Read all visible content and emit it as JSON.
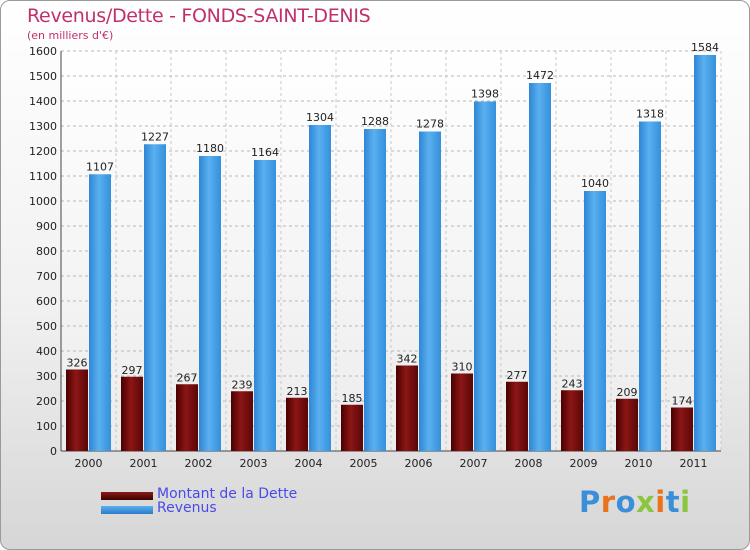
{
  "chart_data": {
    "type": "bar",
    "title": "Revenus/Dette - FONDS-SAINT-DENIS",
    "subtitle": "(en milliers d'€)",
    "categories": [
      "2000",
      "2001",
      "2002",
      "2003",
      "2004",
      "2005",
      "2006",
      "2007",
      "2008",
      "2009",
      "2010",
      "2011"
    ],
    "series": [
      {
        "name": "Montant de la Dette",
        "color": "#6b0a0a",
        "values": [
          326,
          297,
          267,
          239,
          213,
          185,
          342,
          310,
          277,
          243,
          209,
          174
        ]
      },
      {
        "name": "Revenus",
        "color": "#3b97e0",
        "values": [
          1107,
          1227,
          1180,
          1164,
          1304,
          1288,
          1278,
          1398,
          1472,
          1040,
          1318,
          1584
        ]
      }
    ],
    "yticks": [
      0,
      100,
      200,
      300,
      400,
      500,
      600,
      700,
      800,
      900,
      1000,
      1100,
      1200,
      1300,
      1400,
      1500,
      1600
    ],
    "ylim": [
      0,
      1600
    ],
    "grid": true,
    "legend_position": "bottom-left"
  },
  "legend": {
    "debt_label": "Montant de la Dette",
    "revenue_label": "Revenus"
  },
  "brand": {
    "name": "Proxiti",
    "letters": [
      {
        "ch": "P",
        "color": "#3a8fd8"
      },
      {
        "ch": "r",
        "color": "#e8731c"
      },
      {
        "ch": "o",
        "color": "#3a8fd8"
      },
      {
        "ch": "x",
        "color": "#8cc63f"
      },
      {
        "ch": "i",
        "color": "#e8731c"
      },
      {
        "ch": "t",
        "color": "#3a8fd8"
      },
      {
        "ch": "i",
        "color": "#8cc63f"
      }
    ]
  }
}
